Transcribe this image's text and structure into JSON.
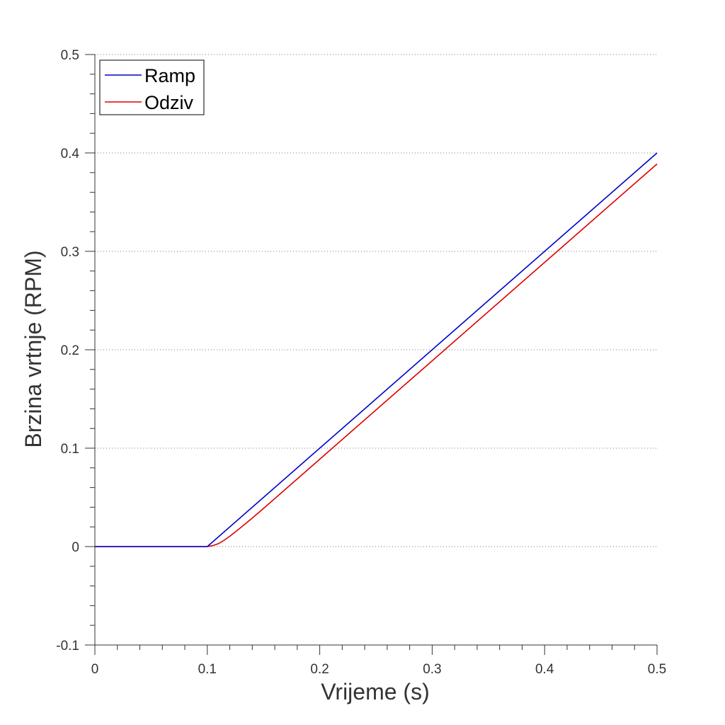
{
  "chart_data": {
    "type": "line",
    "xlabel": "Vrijeme (s)",
    "ylabel": "Brzina vrtnje (RPM)",
    "xlim": [
      0,
      0.5
    ],
    "ylim": [
      -0.1,
      0.5
    ],
    "x_ticks": [
      0,
      0.1,
      0.2,
      0.3,
      0.4,
      0.5
    ],
    "x_tick_labels": [
      "0",
      "0.1",
      "0.2",
      "0.3",
      "0.4",
      "0.5"
    ],
    "y_ticks": [
      -0.1,
      0,
      0.1,
      0.2,
      0.3,
      0.4,
      0.5
    ],
    "y_tick_labels": [
      "-0.1",
      "0",
      "0.1",
      "0.2",
      "0.3",
      "0.4",
      "0.5"
    ],
    "grid": "horizontal dotted",
    "legend_position": "top-left",
    "series": [
      {
        "name": "Ramp",
        "color": "#0000cc",
        "points": [
          [
            0,
            0
          ],
          [
            0.1,
            0
          ],
          [
            0.5,
            0.4
          ]
        ]
      },
      {
        "name": "Odziv",
        "color": "#dd0000",
        "points": [
          [
            0,
            0
          ],
          [
            0.1,
            0
          ],
          [
            0.105,
            0.001
          ],
          [
            0.11,
            0.003
          ],
          [
            0.115,
            0.0065
          ],
          [
            0.12,
            0.0105
          ],
          [
            0.13,
            0.0195
          ],
          [
            0.14,
            0.029
          ],
          [
            0.15,
            0.0388
          ],
          [
            0.2,
            0.0888
          ],
          [
            0.3,
            0.1888
          ],
          [
            0.4,
            0.2888
          ],
          [
            0.5,
            0.3888
          ]
        ]
      }
    ]
  }
}
